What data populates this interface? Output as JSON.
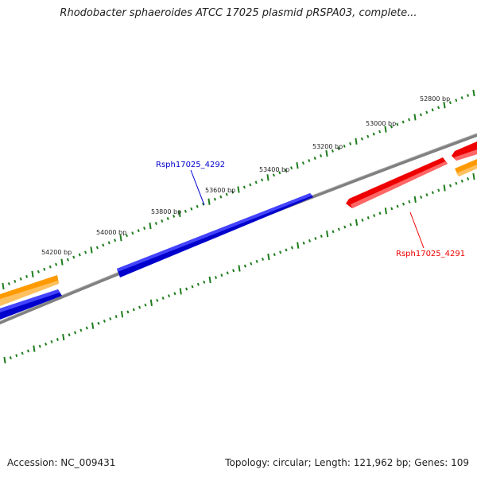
{
  "title": "Rhodobacter sphaeroides ATCC 17025 plasmid pRSPA03, complete...",
  "footer": {
    "accession_label": "Accession:",
    "accession": "NC_009431",
    "topology_label": "Topology:",
    "topology": "circular",
    "length_label": "Length:",
    "length": "121,962 bp",
    "genes_label": "Genes:",
    "genes": "109"
  },
  "scale": {
    "unit": "bp",
    "labels": [
      "52800 bp",
      "53000 bp",
      "53200 bp",
      "53400 bp",
      "53600 bp",
      "53800 bp",
      "54000 bp",
      "54200 bp"
    ]
  },
  "genes": [
    {
      "name": "Rsph17025_4292",
      "strand": "forward",
      "color": "#0000cc",
      "labeled": true
    },
    {
      "name": "Rsph17025_4291",
      "strand": "reverse",
      "color": "#ee0000",
      "labeled": true
    }
  ],
  "colors": {
    "backbone": "#808080",
    "ticks": "#1e7d1e",
    "forward_gene": "#0000cc",
    "reverse_gene": "#ee0000",
    "other_gene": "#ff9a00"
  }
}
